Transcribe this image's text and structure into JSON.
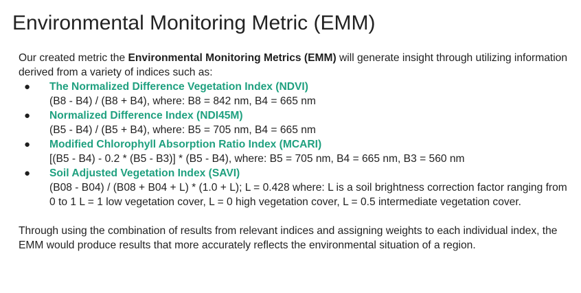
{
  "title": "Environmental Monitoring Metric (EMM)",
  "intro": {
    "before": "Our created metric the ",
    "bold": "Environmental Monitoring Metrics (EMM)",
    "after": " will generate insight through utilizing information derived from a variety of indices such as:"
  },
  "bullet_glyph": "●",
  "colors": {
    "accent": "#1fa07f",
    "text": "#1f1f1f"
  },
  "indices": [
    {
      "name": "The Normalized Difference Vegetation Index (NDVI)",
      "formula": "(B8 - B4) / (B8 + B4), where: B8 = 842 nm, B4 = 665 nm"
    },
    {
      "name": "Normalized Difference Index (NDI45M)",
      "formula": "(B5 - B4) / (B5 + B4), where: B5 = 705 nm, B4 = 665 nm"
    },
    {
      "name": "Modified Chlorophyll Absorption Ratio Index (MCARI)",
      "formula": "[(B5 - B4) - 0.2 * (B5 - B3)] * (B5 - B4), where: B5 = 705 nm, B4 = 665 nm, B3 = 560 nm"
    },
    {
      "name": "Soil Adjusted Vegetation Index (SAVI)",
      "formula": "(B08 - B04) / (B08 + B04 + L) * (1.0 + L); L = 0.428 where: L is a soil brightness correction factor ranging from 0 to 1 L = 1 low vegetation cover, L = 0 high vegetation cover, L = 0.5 intermediate vegetation cover."
    }
  ],
  "conclusion": "Through using the combination of results from relevant indices and assigning weights to each individual index, the EMM would produce results that more accurately reflects the environmental situation of a region."
}
